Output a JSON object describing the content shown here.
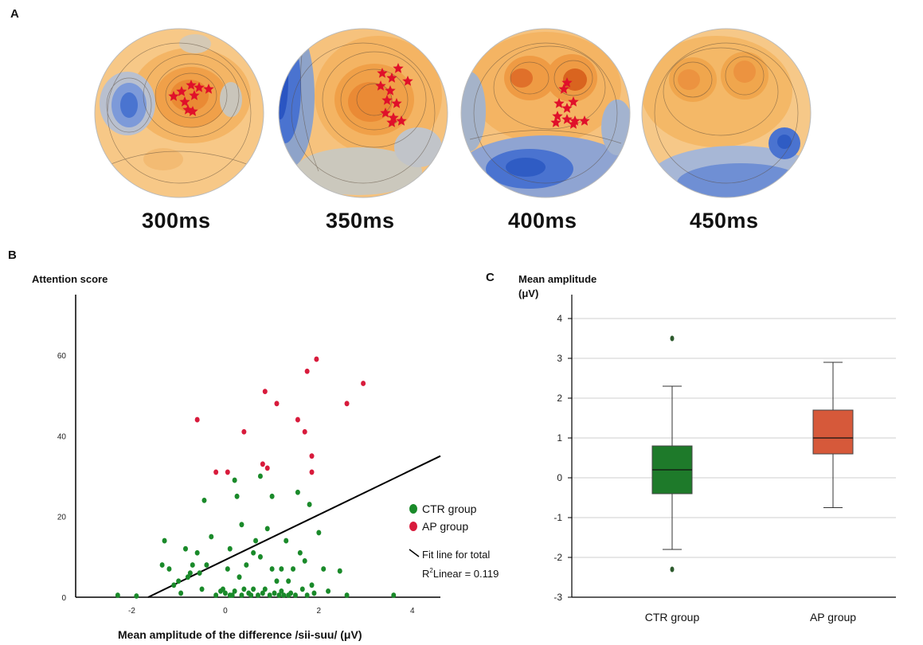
{
  "panels": {
    "a_letter": "A",
    "b_letter": "B",
    "c_letter": "C"
  },
  "topomaps": [
    {
      "label": "300ms"
    },
    {
      "label": "350ms"
    },
    {
      "label": "400ms"
    },
    {
      "label": "450ms"
    }
  ],
  "colors": {
    "ctr": "#1a8a2a",
    "ap": "#d81b3c",
    "ctr_box": "#1e7a2a",
    "ap_box": "#d6593a",
    "star": "#e0102a"
  },
  "chart_data": [
    {
      "type": "scatter",
      "ylabel": "Attention score",
      "xlabel": "Mean amplitude of the difference /sii-suu/  (μV)",
      "xlim": [
        -3.2,
        4.6
      ],
      "ylim": [
        0,
        75
      ],
      "xticks": [
        -2,
        0,
        2,
        4
      ],
      "yticks": [
        0,
        20,
        40,
        60
      ],
      "legend_position": "right",
      "series": [
        {
          "name": "CTR group",
          "points": [
            [
              -2.3,
              0.5
            ],
            [
              -1.9,
              0.3
            ],
            [
              -1.3,
              14
            ],
            [
              -1.35,
              8
            ],
            [
              -1.2,
              7
            ],
            [
              -1.1,
              3
            ],
            [
              -1.0,
              4
            ],
            [
              -0.95,
              1
            ],
            [
              -0.85,
              12
            ],
            [
              -0.8,
              5
            ],
            [
              -0.75,
              6
            ],
            [
              -0.7,
              8
            ],
            [
              -0.6,
              11
            ],
            [
              -0.55,
              6
            ],
            [
              -0.5,
              2
            ],
            [
              -0.45,
              24
            ],
            [
              -0.4,
              8
            ],
            [
              -0.3,
              15
            ],
            [
              -0.2,
              0.5
            ],
            [
              -0.1,
              1.5
            ],
            [
              -0.05,
              2
            ],
            [
              0.0,
              1
            ],
            [
              0.05,
              7
            ],
            [
              0.1,
              0.5
            ],
            [
              0.15,
              0.5
            ],
            [
              0.1,
              12
            ],
            [
              0.2,
              1.5
            ],
            [
              0.2,
              29
            ],
            [
              0.25,
              25
            ],
            [
              0.3,
              5
            ],
            [
              0.35,
              0.5
            ],
            [
              0.35,
              18
            ],
            [
              0.4,
              2
            ],
            [
              0.45,
              8
            ],
            [
              0.5,
              1
            ],
            [
              0.55,
              0.5
            ],
            [
              0.6,
              11
            ],
            [
              0.6,
              2
            ],
            [
              0.65,
              14
            ],
            [
              0.7,
              0.5
            ],
            [
              0.75,
              10
            ],
            [
              0.75,
              30
            ],
            [
              0.8,
              1
            ],
            [
              0.85,
              2
            ],
            [
              0.9,
              17
            ],
            [
              0.95,
              0.5
            ],
            [
              1.0,
              7
            ],
            [
              1.0,
              25
            ],
            [
              1.05,
              1
            ],
            [
              1.1,
              4
            ],
            [
              1.15,
              0.5
            ],
            [
              1.2,
              1.5
            ],
            [
              1.2,
              7
            ],
            [
              1.25,
              0.5
            ],
            [
              1.3,
              14
            ],
            [
              1.35,
              0.5
            ],
            [
              1.35,
              4
            ],
            [
              1.4,
              1
            ],
            [
              1.45,
              7
            ],
            [
              1.5,
              0.5
            ],
            [
              1.55,
              26
            ],
            [
              1.6,
              11
            ],
            [
              1.65,
              2
            ],
            [
              1.7,
              9
            ],
            [
              1.75,
              0.5
            ],
            [
              1.8,
              23
            ],
            [
              1.85,
              3
            ],
            [
              1.9,
              1
            ],
            [
              2.0,
              16
            ],
            [
              2.1,
              7
            ],
            [
              2.2,
              1.5
            ],
            [
              2.45,
              6.5
            ],
            [
              3.6,
              0.5
            ],
            [
              2.6,
              0.5
            ]
          ]
        },
        {
          "name": "AP group",
          "points": [
            [
              -0.6,
              44
            ],
            [
              -0.2,
              31
            ],
            [
              0.05,
              31
            ],
            [
              0.4,
              41
            ],
            [
              0.8,
              33
            ],
            [
              0.9,
              32
            ],
            [
              0.85,
              51
            ],
            [
              1.1,
              48
            ],
            [
              1.55,
              44
            ],
            [
              1.7,
              41
            ],
            [
              1.75,
              56
            ],
            [
              1.85,
              35
            ],
            [
              1.85,
              31
            ],
            [
              1.95,
              59
            ],
            [
              2.6,
              48
            ],
            [
              2.95,
              53
            ]
          ]
        }
      ],
      "fit_line": {
        "label": "Fit line for total",
        "x": [
          -1.65,
          4.6
        ],
        "y": [
          0,
          35
        ]
      },
      "r2_text": {
        "prefix": "R",
        "sup": "2",
        "rest": "Linear = 0.119"
      }
    },
    {
      "type": "box",
      "ylabel": "Mean amplitude",
      "yunit": "(μV)",
      "ylim": [
        -3,
        4.6
      ],
      "yticks": [
        -3,
        -2,
        -1,
        0,
        1,
        2,
        3,
        4
      ],
      "grid": true,
      "categories": [
        "CTR group",
        "AP group"
      ],
      "boxes": [
        {
          "name": "CTR group",
          "whisker_low": -1.8,
          "q1": -0.4,
          "median": 0.2,
          "q3": 0.8,
          "whisker_high": 2.3,
          "outliers": [
            3.5,
            -2.3
          ]
        },
        {
          "name": "AP group",
          "whisker_low": -0.75,
          "q1": 0.6,
          "median": 1.0,
          "q3": 1.7,
          "whisker_high": 2.9,
          "outliers": []
        }
      ]
    }
  ]
}
